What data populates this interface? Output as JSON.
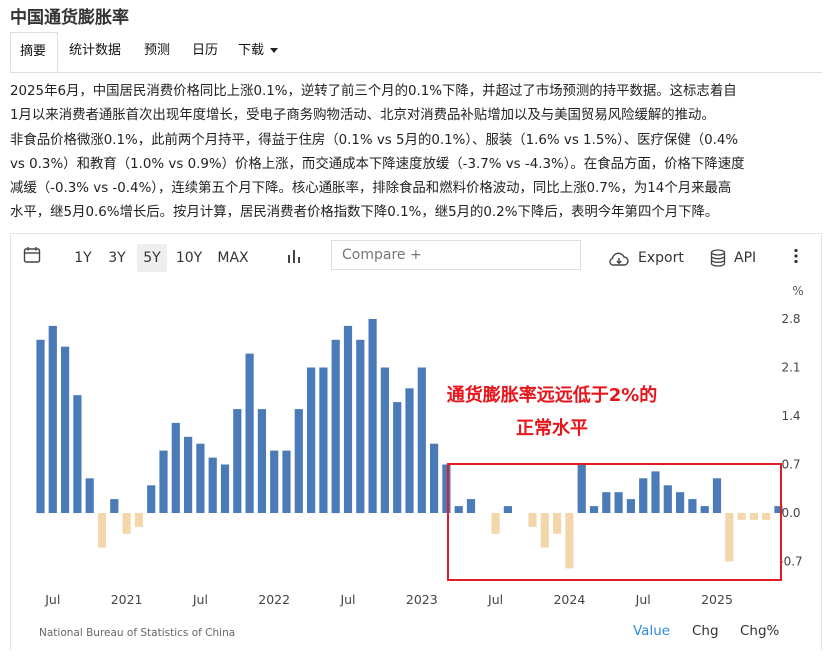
{
  "header": {
    "title": "中国通货膨胀率"
  },
  "tabs": [
    {
      "label": "摘要"
    },
    {
      "label": "统计数据"
    },
    {
      "label": "预测"
    },
    {
      "label": "日历"
    },
    {
      "label": "下载"
    }
  ],
  "description": {
    "line1": "2025年6月，中国居民消费价格同比上涨0.1%，逆转了前三个月的0.1%下降，并超过了市场预测的持平数据。这标志着自",
    "line2": "1月以来消费者通胀首次出现年度增长，受电子商务购物活动、北京对消费品补贴增加以及与美国贸易风险缓解的推动。",
    "line3": "非食品价格微涨0.1%，此前两个月持平，得益于住房（0.1% vs 5月的0.1%）、服装（1.6% vs 1.5%）、医疗保健（0.4%",
    "line4": "vs 0.3%）和教育（1.0% vs 0.9%）价格上涨，而交通成本下降速度放缓（-3.7% vs -4.3%）。在食品方面，价格下降速度",
    "line5": "减缓（-0.3% vs -0.4%），连续第五个月下降。核心通胀率，排除食品和燃料价格波动，同比上涨0.7%，为14个月来最高",
    "line6": "水平，继5月0.6%增长后。按月计算，居民消费者价格指数下降0.1%，继5月的0.2%下降后，表明今年第四个月下降。"
  },
  "toolbar": {
    "ranges": [
      "1Y",
      "3Y",
      "5Y",
      "10Y",
      "MAX"
    ],
    "active_range": "5Y",
    "compare_placeholder": "Compare +",
    "export_label": "Export",
    "api_label": "API"
  },
  "footer": {
    "source": "National Bureau of Statistics of China",
    "modes": [
      "Value",
      "Chg",
      "Chg%"
    ],
    "active_mode": "Value"
  },
  "annotation": {
    "line1": "通货膨胀率远远低于2%的",
    "line2": "正常水平",
    "color": "#e8141b"
  },
  "colors": {
    "positive": "#4a7ab8",
    "negative": "#f3d7ab",
    "highlight_border": "#e01c24",
    "accent": "#2f8ad8"
  },
  "chart_data": {
    "type": "bar",
    "unit": "%",
    "x_tick_labels": [
      "Jul",
      "2021",
      "Jul",
      "2022",
      "Jul",
      "2023",
      "Jul",
      "2024",
      "Jul",
      "2025"
    ],
    "y_ticks": [
      2.8,
      2.1,
      1.4,
      0.7,
      0.0,
      -0.7
    ],
    "ylim": [
      -0.9,
      3.0
    ],
    "x": [
      "2020-06",
      "2020-07",
      "2020-08",
      "2020-09",
      "2020-10",
      "2020-11",
      "2020-12",
      "2021-01",
      "2021-02",
      "2021-03",
      "2021-04",
      "2021-05",
      "2021-06",
      "2021-07",
      "2021-08",
      "2021-09",
      "2021-10",
      "2021-11",
      "2021-12",
      "2022-01",
      "2022-02",
      "2022-03",
      "2022-04",
      "2022-05",
      "2022-06",
      "2022-07",
      "2022-08",
      "2022-09",
      "2022-10",
      "2022-11",
      "2022-12",
      "2023-01",
      "2023-02",
      "2023-03",
      "2023-04",
      "2023-05",
      "2023-06",
      "2023-07",
      "2023-08",
      "2023-09",
      "2023-10",
      "2023-11",
      "2023-12",
      "2024-01",
      "2024-02",
      "2024-03",
      "2024-04",
      "2024-05",
      "2024-06",
      "2024-07",
      "2024-08",
      "2024-09",
      "2024-10",
      "2024-11",
      "2024-12",
      "2025-01",
      "2025-02",
      "2025-03",
      "2025-04",
      "2025-05",
      "2025-06"
    ],
    "values": [
      2.5,
      2.7,
      2.4,
      1.7,
      0.5,
      -0.5,
      0.2,
      -0.3,
      -0.2,
      0.4,
      0.9,
      1.3,
      1.1,
      1.0,
      0.8,
      0.7,
      1.5,
      2.3,
      1.5,
      0.9,
      0.9,
      1.5,
      2.1,
      2.1,
      2.5,
      2.7,
      2.5,
      2.8,
      2.1,
      1.6,
      1.8,
      2.1,
      1.0,
      0.7,
      0.1,
      0.2,
      0.0,
      -0.3,
      0.1,
      0.0,
      -0.2,
      -0.5,
      -0.3,
      -0.8,
      0.7,
      0.1,
      0.3,
      0.3,
      0.2,
      0.5,
      0.6,
      0.4,
      0.3,
      0.2,
      0.1,
      0.5,
      -0.7,
      -0.1,
      -0.1,
      -0.1,
      0.1
    ]
  }
}
